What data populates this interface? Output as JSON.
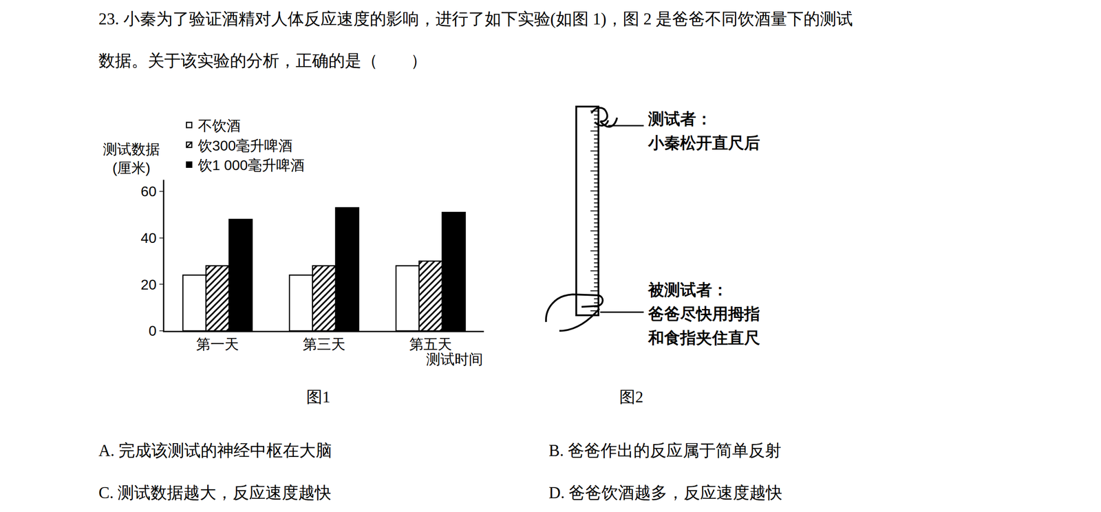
{
  "question": {
    "lines": [
      "23. 小秦为了验证酒精对人体反应速度的影响，进行了如下实验(如图 1)，图 2 是爸爸不同饮酒量下的测试",
      "数据。关于该实验的分析，正确的是（　　）"
    ],
    "options": [
      "A. 完成该测试的神经中枢在大脑",
      "B. 爸爸作出的反应属于简单反射",
      "C. 测试数据越大，反应速度越快",
      "D. 爸爸饮酒越多，反应速度越快"
    ]
  },
  "chart_data": {
    "type": "bar",
    "caption": "图1",
    "y_label": "测试数据\n(厘米)",
    "x_label": "测试时间",
    "categories": [
      "第一天",
      "第三天",
      "第五天"
    ],
    "series": [
      {
        "name": "不饮酒",
        "color": "#ffffff",
        "values": [
          24,
          24,
          28
        ]
      },
      {
        "name": "饮300毫升啤酒",
        "color": "#ffffff",
        "marker": "hatched",
        "values": [
          28,
          28,
          30
        ]
      },
      {
        "name": "饮1 000毫升啤酒",
        "color": "#000000",
        "values": [
          48,
          53,
          51
        ]
      }
    ],
    "ylim": [
      0,
      65
    ],
    "yticks": [
      0,
      20,
      40,
      60
    ],
    "grid": false,
    "legend": "top"
  },
  "figure2": {
    "caption": "图2",
    "top_label": [
      "测试者：",
      "小秦松开直尺后"
    ],
    "bottom_label": [
      "被测试者：",
      "爸爸尽快用拇指",
      "和食指夹住直尺"
    ]
  }
}
